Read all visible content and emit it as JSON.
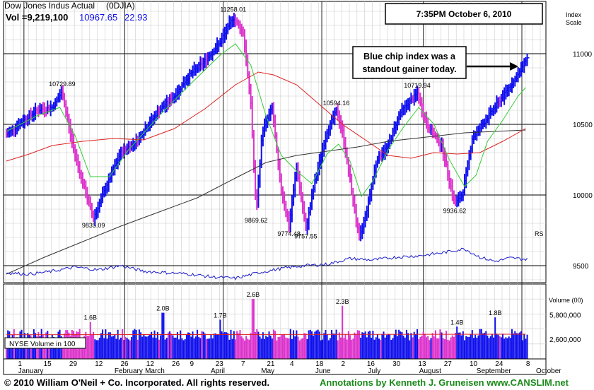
{
  "header": {
    "title": "Dow Jones Indus Actual",
    "symbol": "(0DJIA)",
    "vol_label": "Vol =9,219,100",
    "price": "10967.65",
    "change": "22.93",
    "timestamp": "7:35PM October 6, 2010"
  },
  "index_scale_label": [
    "Index",
    "Scale"
  ],
  "callout": {
    "line1": "Blue chip index was a",
    "line2": "standout gainer today."
  },
  "rs_label": "RS",
  "volume_axis_label": "Volume (00)",
  "volume_box_label": "NYSE Volume in 100",
  "footer": {
    "copyright": "© 2010 William O'Neil + Co. Incorporated. All rights reserved.",
    "annotations": "Annotations by Kenneth J. Gruneisen www.CANSLIM.net"
  },
  "colors": {
    "up": "#1010ee",
    "down": "#dd33cc",
    "ma_short": "#33cc33",
    "ma_mid": "#dd2222",
    "ma_long": "#333333",
    "rs": "#1a1acc",
    "footer_left": "#000000",
    "footer_right": "#1a8a1a"
  },
  "chart_data": {
    "type": "bar",
    "price_ylim": [
      9380,
      11370
    ],
    "price_ticks": [
      11000,
      10500,
      10000,
      9500
    ],
    "volume_ylim": [
      0,
      3000000000
    ],
    "volume_ticks": [
      {
        "value": 5800000000,
        "label": "5,800,000"
      },
      {
        "value": 2600000000,
        "label": "2,600,000"
      }
    ],
    "x_day_labels": [
      "1",
      "15",
      "29",
      "12",
      "26",
      "12",
      "26",
      "9",
      "23",
      "7",
      "21",
      "4",
      "18",
      "2",
      "16",
      "30",
      "13",
      "27",
      "10",
      "24",
      "8"
    ],
    "x_month_labels": [
      "January",
      "February",
      "March",
      "April",
      "May",
      "June",
      "July",
      "August",
      "September",
      "October"
    ],
    "anchors": [
      {
        "w": 0,
        "v": 10430
      },
      {
        "w": 4,
        "v": 10600
      },
      {
        "w": 6,
        "v": 10620
      },
      {
        "w": 7.3,
        "v": 10729.89
      },
      {
        "w": 8.5,
        "v": 10400
      },
      {
        "w": 9.8,
        "v": 10120
      },
      {
        "w": 11.4,
        "v": 9835.09
      },
      {
        "w": 13,
        "v": 10050
      },
      {
        "w": 15,
        "v": 10300
      },
      {
        "w": 17,
        "v": 10380
      },
      {
        "w": 20,
        "v": 10600
      },
      {
        "w": 22,
        "v": 10700
      },
      {
        "w": 24,
        "v": 10850
      },
      {
        "w": 26,
        "v": 10950
      },
      {
        "w": 28,
        "v": 11080
      },
      {
        "w": 29.7,
        "v": 11258.01
      },
      {
        "w": 31,
        "v": 11150
      },
      {
        "w": 32,
        "v": 10650
      },
      {
        "w": 32.7,
        "v": 9869.62
      },
      {
        "w": 33.5,
        "v": 10450
      },
      {
        "w": 34.8,
        "v": 10620
      },
      {
        "w": 35.8,
        "v": 10100
      },
      {
        "w": 37,
        "v": 9774.48
      },
      {
        "w": 38,
        "v": 10200
      },
      {
        "w": 39.2,
        "v": 9757.55
      },
      {
        "w": 40.4,
        "v": 10100
      },
      {
        "w": 42,
        "v": 10450
      },
      {
        "w": 43.2,
        "v": 10594.16
      },
      {
        "w": 44,
        "v": 10450
      },
      {
        "w": 45,
        "v": 10100
      },
      {
        "w": 46.2,
        "v": 9686
      },
      {
        "w": 47.2,
        "v": 9900
      },
      {
        "w": 48.5,
        "v": 10250
      },
      {
        "w": 50,
        "v": 10350
      },
      {
        "w": 51.5,
        "v": 10580
      },
      {
        "w": 53.8,
        "v": 10719.94
      },
      {
        "w": 55,
        "v": 10500
      },
      {
        "w": 57,
        "v": 10350
      },
      {
        "w": 58.7,
        "v": 9936.62
      },
      {
        "w": 59.7,
        "v": 10000
      },
      {
        "w": 61,
        "v": 10400
      },
      {
        "w": 63,
        "v": 10550
      },
      {
        "w": 65,
        "v": 10700
      },
      {
        "w": 67,
        "v": 10850
      },
      {
        "w": 68.1,
        "v": 10967.65
      }
    ],
    "ma_short": [
      {
        "w": 0,
        "v": 10450
      },
      {
        "w": 4,
        "v": 10560
      },
      {
        "w": 7,
        "v": 10620
      },
      {
        "w": 9,
        "v": 10420
      },
      {
        "w": 11,
        "v": 10130
      },
      {
        "w": 13.5,
        "v": 10130
      },
      {
        "w": 16,
        "v": 10320
      },
      {
        "w": 20,
        "v": 10560
      },
      {
        "w": 24,
        "v": 10780
      },
      {
        "w": 28,
        "v": 10990
      },
      {
        "w": 30,
        "v": 11070
      },
      {
        "w": 32,
        "v": 10920
      },
      {
        "w": 34,
        "v": 10560
      },
      {
        "w": 36,
        "v": 10280
      },
      {
        "w": 38,
        "v": 10170
      },
      {
        "w": 40,
        "v": 10080
      },
      {
        "w": 42,
        "v": 10290
      },
      {
        "w": 43.5,
        "v": 10360
      },
      {
        "w": 45,
        "v": 10240
      },
      {
        "w": 46.5,
        "v": 9990
      },
      {
        "w": 48,
        "v": 10100
      },
      {
        "w": 50,
        "v": 10320
      },
      {
        "w": 52,
        "v": 10480
      },
      {
        "w": 54,
        "v": 10620
      },
      {
        "w": 56,
        "v": 10500
      },
      {
        "w": 58,
        "v": 10250
      },
      {
        "w": 60,
        "v": 10060
      },
      {
        "w": 61.5,
        "v": 10140
      },
      {
        "w": 63,
        "v": 10380
      },
      {
        "w": 65,
        "v": 10530
      },
      {
        "w": 67,
        "v": 10700
      },
      {
        "w": 68,
        "v": 10760
      }
    ],
    "ma_mid": [
      {
        "w": 0,
        "v": 10240
      },
      {
        "w": 3,
        "v": 10290
      },
      {
        "w": 6,
        "v": 10350
      },
      {
        "w": 10,
        "v": 10380
      },
      {
        "w": 14,
        "v": 10400
      },
      {
        "w": 18,
        "v": 10390
      },
      {
        "w": 22,
        "v": 10470
      },
      {
        "w": 26,
        "v": 10610
      },
      {
        "w": 30,
        "v": 10780
      },
      {
        "w": 33,
        "v": 10870
      },
      {
        "w": 35,
        "v": 10850
      },
      {
        "w": 38,
        "v": 10780
      },
      {
        "w": 41,
        "v": 10640
      },
      {
        "w": 44,
        "v": 10500
      },
      {
        "w": 47,
        "v": 10390
      },
      {
        "w": 50,
        "v": 10280
      },
      {
        "w": 53,
        "v": 10260
      },
      {
        "w": 56,
        "v": 10300
      },
      {
        "w": 59,
        "v": 10290
      },
      {
        "w": 62,
        "v": 10300
      },
      {
        "w": 65,
        "v": 10380
      },
      {
        "w": 68,
        "v": 10470
      }
    ],
    "ma_long": [
      {
        "w": 0,
        "v": 9440
      },
      {
        "w": 5,
        "v": 9560
      },
      {
        "w": 10,
        "v": 9670
      },
      {
        "w": 15,
        "v": 9780
      },
      {
        "w": 20,
        "v": 9880
      },
      {
        "w": 25,
        "v": 9980
      },
      {
        "w": 30,
        "v": 10120
      },
      {
        "w": 34,
        "v": 10230
      },
      {
        "w": 38,
        "v": 10280
      },
      {
        "w": 42,
        "v": 10310
      },
      {
        "w": 46,
        "v": 10340
      },
      {
        "w": 50,
        "v": 10380
      },
      {
        "w": 55,
        "v": 10410
      },
      {
        "w": 60,
        "v": 10440
      },
      {
        "w": 64,
        "v": 10450
      },
      {
        "w": 68,
        "v": 10460
      }
    ],
    "rs_line": [
      {
        "w": 0,
        "v": 9450
      },
      {
        "w": 3,
        "v": 9440
      },
      {
        "w": 6,
        "v": 9460
      },
      {
        "w": 9,
        "v": 9490
      },
      {
        "w": 12,
        "v": 9470
      },
      {
        "w": 15,
        "v": 9500
      },
      {
        "w": 18,
        "v": 9460
      },
      {
        "w": 21,
        "v": 9450
      },
      {
        "w": 24,
        "v": 9440
      },
      {
        "w": 27,
        "v": 9420
      },
      {
        "w": 30,
        "v": 9410
      },
      {
        "w": 33,
        "v": 9450
      },
      {
        "w": 36,
        "v": 9480
      },
      {
        "w": 39,
        "v": 9500
      },
      {
        "w": 42,
        "v": 9510
      },
      {
        "w": 45,
        "v": 9550
      },
      {
        "w": 48,
        "v": 9540
      },
      {
        "w": 51,
        "v": 9560
      },
      {
        "w": 54,
        "v": 9570
      },
      {
        "w": 57,
        "v": 9590
      },
      {
        "w": 60,
        "v": 9620
      },
      {
        "w": 62,
        "v": 9560
      },
      {
        "w": 64,
        "v": 9530
      },
      {
        "w": 66,
        "v": 9555
      },
      {
        "w": 68,
        "v": 9545
      }
    ],
    "annotations": [
      {
        "w": 7.3,
        "v": 10729.89,
        "label": "10729.89",
        "pos": "above"
      },
      {
        "w": 11.4,
        "v": 9835.09,
        "label": "9835.09",
        "pos": "below"
      },
      {
        "w": 29.7,
        "v": 11258.01,
        "label": "11258.01",
        "pos": "above"
      },
      {
        "w": 32.7,
        "v": 9869.62,
        "label": "9869.62",
        "pos": "below"
      },
      {
        "w": 37,
        "v": 9774.48,
        "label": "9774.48",
        "pos": "below"
      },
      {
        "w": 39.2,
        "v": 9757.55,
        "label": "9757.55",
        "pos": "below"
      },
      {
        "w": 43.2,
        "v": 10594.16,
        "label": "10594.16",
        "pos": "above"
      },
      {
        "w": 53.8,
        "v": 10719.94,
        "label": "10719.94",
        "pos": "above"
      },
      {
        "w": 58.7,
        "v": 9936.62,
        "label": "9936.62",
        "pos": "below"
      }
    ],
    "volume_labels": [
      {
        "w": 11,
        "label": "1.6B",
        "v": 1600000000
      },
      {
        "w": 20.5,
        "label": "2.0B",
        "v": 2000000000
      },
      {
        "w": 28,
        "label": "1.7B",
        "v": 1700000000
      },
      {
        "w": 32.3,
        "label": "2.6B",
        "v": 2600000000
      },
      {
        "w": 44,
        "label": "2.3B",
        "v": 2300000000
      },
      {
        "w": 59,
        "label": "1.4B",
        "v": 1400000000
      },
      {
        "w": 64,
        "label": "1.8B",
        "v": 1800000000
      }
    ],
    "volume_avg_level": 1050000000
  }
}
